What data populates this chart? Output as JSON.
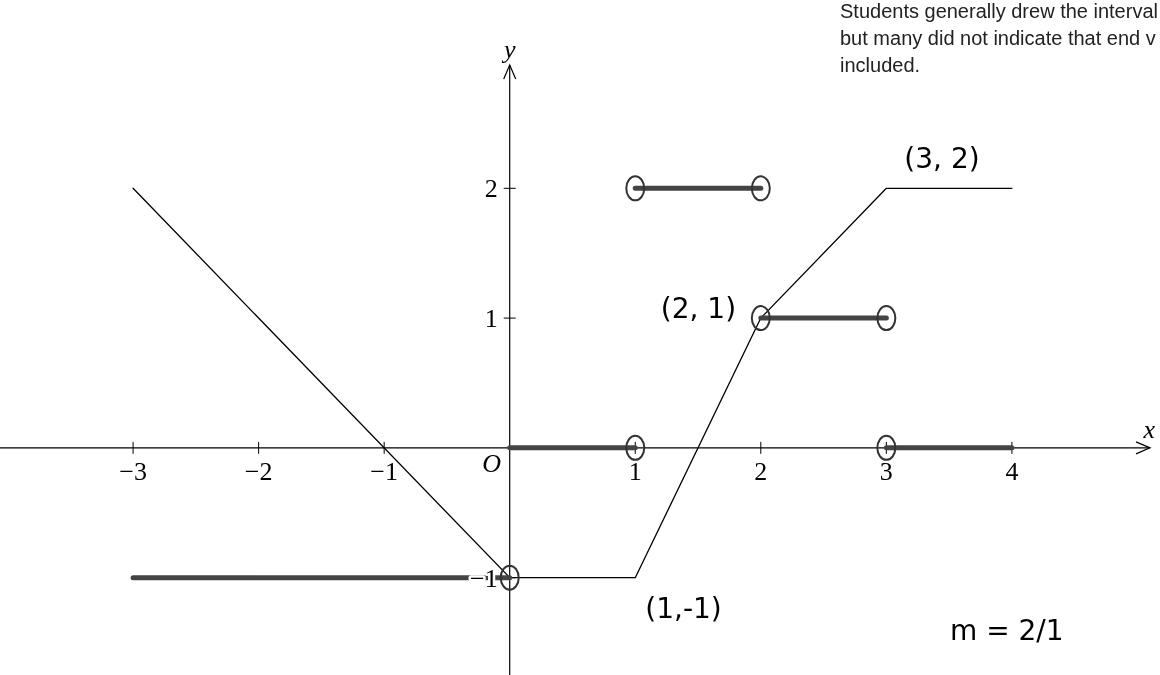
{
  "chart_data": {
    "type": "line",
    "xlabel": "x",
    "ylabel": "y",
    "xlim": [
      -4.06,
      5.1
    ],
    "ylim": [
      -1.75,
      2.95
    ],
    "xticks": [
      -3,
      -2,
      -1,
      1,
      2,
      3,
      4
    ],
    "yticks": [
      -1,
      1,
      2
    ],
    "grid": false,
    "ref_lines": [
      {
        "axis": "y",
        "value": 0,
        "color": "#000000"
      }
    ],
    "series": [
      {
        "color": "#000000",
        "x": [
          -3,
          0,
          1,
          2,
          3,
          4
        ],
        "values": [
          2,
          -1,
          -1,
          1,
          2,
          2
        ]
      },
      {
        "color": "#444444",
        "x": [
          -3,
          0
        ],
        "values": [
          -1,
          -1
        ]
      },
      {
        "color": "#444444",
        "x": [
          0,
          1
        ],
        "values": [
          0,
          0
        ]
      },
      {
        "color": "#444444",
        "x": [
          1,
          2
        ],
        "values": [
          2,
          2
        ]
      },
      {
        "color": "#444444",
        "x": [
          2,
          3
        ],
        "values": [
          1,
          1
        ]
      },
      {
        "color": "#444444",
        "x": [
          3,
          4
        ],
        "values": [
          0,
          0
        ]
      },
      {
        "type": "scatter",
        "marker": "circle",
        "color": "#333333",
        "x": [
          0,
          1,
          1,
          2,
          2,
          3,
          3
        ],
        "values": [
          -1,
          0,
          2,
          2,
          1,
          1,
          0
        ]
      }
    ],
    "annotations": [
      "Students generally drew the interval",
      "but many did not indicate that end v",
      "included.",
      "m = 2/1",
      {
        "text": "O",
        "x": 0,
        "y": 0
      },
      {
        "text": "(3, 2)",
        "x": 3,
        "y": 2
      },
      {
        "text": "(2, 1)",
        "x": 2,
        "y": 1
      },
      {
        "text": "(1,-1)",
        "x": 1,
        "y": -1
      }
    ]
  }
}
